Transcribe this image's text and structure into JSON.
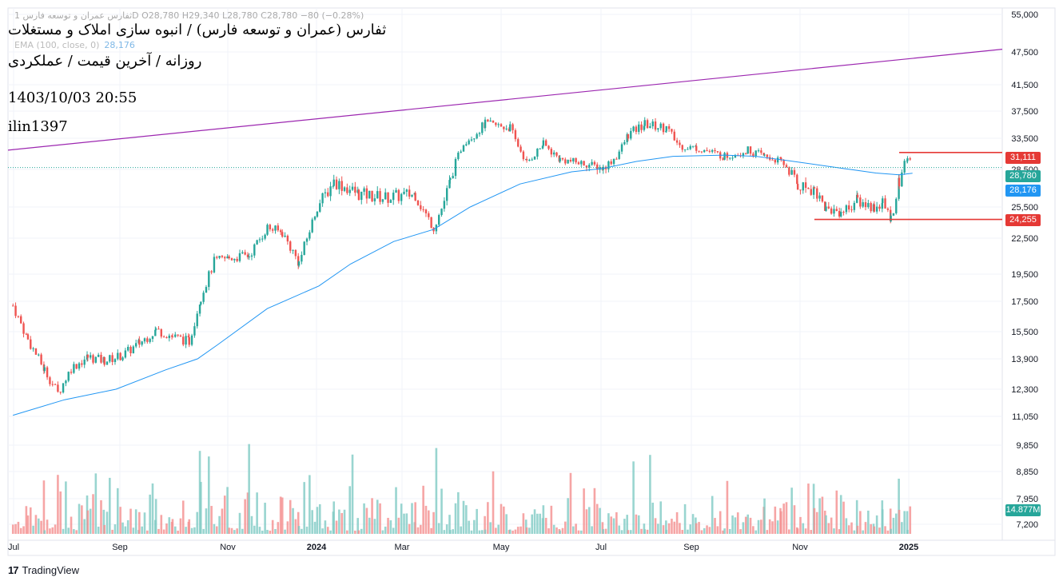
{
  "title": {
    "symbol": "ثفارس (عمران و توسعه فارس) / انبوه سازی املاک و مستغلات",
    "subtitle": "روزانه / آخرین قیمت / عملکردی",
    "datetime": "1403/10/03 20:55",
    "author": "ilin1397"
  },
  "legend": {
    "ohlc_line": "ثفارس عمران و توسعه فارس 1D  O28,780  H29,340  L28,780  C28,780  −80 (−0.28%)",
    "ema_label": "EMA (100, close, 0)",
    "ema_value": "28,176"
  },
  "branding": {
    "logo": "17",
    "name": "TradingView"
  },
  "colors": {
    "up": "#26a69a",
    "down": "#ef5350",
    "ema": "#2196f3",
    "trendline": "#9c27b0",
    "level": "#e53935",
    "vol_up": "#80cbc4",
    "vol_down": "#f48f8f"
  },
  "price_tags": {
    "resistance": "31,111",
    "last": "28,780",
    "ema": "28,176",
    "support": "24,255",
    "volume": "14.877M"
  },
  "chart_data": {
    "type": "candlestick",
    "scale": "log",
    "ylim": [
      7000,
      55000
    ],
    "y_ticks": [
      "55,000",
      "47,500",
      "41,500",
      "37,500",
      "33,500",
      "28,500",
      "25,500",
      "22,500",
      "19,500",
      "17,500",
      "15,500",
      "13,900",
      "12,300",
      "11,050",
      "9,850",
      "8,850",
      "7,950",
      "7,200"
    ],
    "x_ticks": [
      "Jul",
      "Sep",
      "Nov",
      "2024",
      "Mar",
      "May",
      "Jul",
      "Sep",
      "Nov",
      "2025"
    ],
    "price_path": [
      [
        "2023-07-01",
        17200
      ],
      [
        "2023-07-10",
        15000
      ],
      [
        "2023-07-20",
        13300
      ],
      [
        "2023-07-28",
        12100
      ],
      [
        "2023-08-05",
        13400
      ],
      [
        "2023-08-15",
        14000
      ],
      [
        "2023-08-25",
        13800
      ],
      [
        "2023-09-05",
        14100
      ],
      [
        "2023-09-15",
        14800
      ],
      [
        "2023-09-25",
        15600
      ],
      [
        "2023-10-05",
        15200
      ],
      [
        "2023-10-15",
        14900
      ],
      [
        "2023-10-22",
        17800
      ],
      [
        "2023-10-30",
        20500
      ],
      [
        "2023-11-08",
        20800
      ],
      [
        "2023-11-20",
        21000
      ],
      [
        "2023-12-01",
        23500
      ],
      [
        "2023-12-10",
        23000
      ],
      [
        "2023-12-20",
        20400
      ],
      [
        "2023-12-31",
        25500
      ],
      [
        "2024-01-10",
        27500
      ],
      [
        "2024-01-25",
        26500
      ],
      [
        "2024-02-10",
        26200
      ],
      [
        "2024-02-28",
        26500
      ],
      [
        "2024-03-10",
        23500
      ],
      [
        "2024-03-20",
        27500
      ],
      [
        "2024-03-28",
        32800
      ],
      [
        "2024-04-10",
        35500
      ],
      [
        "2024-04-25",
        35000
      ],
      [
        "2024-05-05",
        29500
      ],
      [
        "2024-05-15",
        32500
      ],
      [
        "2024-05-25",
        30000
      ],
      [
        "2024-06-10",
        29300
      ],
      [
        "2024-06-20",
        28700
      ],
      [
        "2024-06-28",
        30500
      ],
      [
        "2024-07-05",
        34000
      ],
      [
        "2024-07-15",
        35500
      ],
      [
        "2024-07-28",
        35000
      ],
      [
        "2024-08-05",
        32200
      ],
      [
        "2024-08-15",
        31900
      ],
      [
        "2024-09-01",
        30500
      ],
      [
        "2024-09-15",
        31500
      ],
      [
        "2024-09-25",
        30500
      ],
      [
        "2024-10-05",
        29700
      ],
      [
        "2024-10-15",
        27200
      ],
      [
        "2024-10-25",
        26900
      ],
      [
        "2024-11-01",
        25300
      ],
      [
        "2024-11-10",
        25000
      ],
      [
        "2024-11-20",
        26000
      ],
      [
        "2024-11-30",
        25400
      ],
      [
        "2024-12-05",
        25800
      ],
      [
        "2024-12-10",
        24400
      ],
      [
        "2024-12-15",
        27500
      ],
      [
        "2024-12-20",
        30300
      ],
      [
        "2024-12-23",
        28780
      ]
    ],
    "ema100": [
      [
        "2023-07-01",
        11100
      ],
      [
        "2023-08-01",
        11800
      ],
      [
        "2023-09-01",
        12300
      ],
      [
        "2023-10-01",
        13300
      ],
      [
        "2023-10-20",
        13900
      ],
      [
        "2023-11-01",
        14700
      ],
      [
        "2023-12-01",
        17000
      ],
      [
        "2024-01-01",
        18600
      ],
      [
        "2024-01-20",
        20300
      ],
      [
        "2024-02-15",
        22200
      ],
      [
        "2024-03-10",
        23300
      ],
      [
        "2024-04-01",
        25500
      ],
      [
        "2024-05-01",
        27300
      ],
      [
        "2024-06-01",
        28300
      ],
      [
        "2024-06-20",
        28650
      ],
      [
        "2024-07-10",
        29700
      ],
      [
        "2024-08-01",
        30500
      ],
      [
        "2024-09-01",
        30700
      ],
      [
        "2024-09-20",
        30500
      ],
      [
        "2024-10-10",
        29800
      ],
      [
        "2024-11-01",
        29000
      ],
      [
        "2024-12-01",
        28200
      ],
      [
        "2024-12-15",
        28050
      ],
      [
        "2024-12-23",
        28176
      ]
    ],
    "trendline": [
      [
        "2023-06-28",
        31500
      ],
      [
        "2025-02-15",
        48000
      ]
    ],
    "levels": [
      {
        "label": "resistance",
        "value": 31111,
        "from": "2024-12-15",
        "to": "2025-02-15"
      },
      {
        "label": "support",
        "value": 24255,
        "from": "2024-10-25",
        "to": "2025-02-15"
      }
    ],
    "last_price": 28780,
    "volume_last": "14.877M"
  }
}
